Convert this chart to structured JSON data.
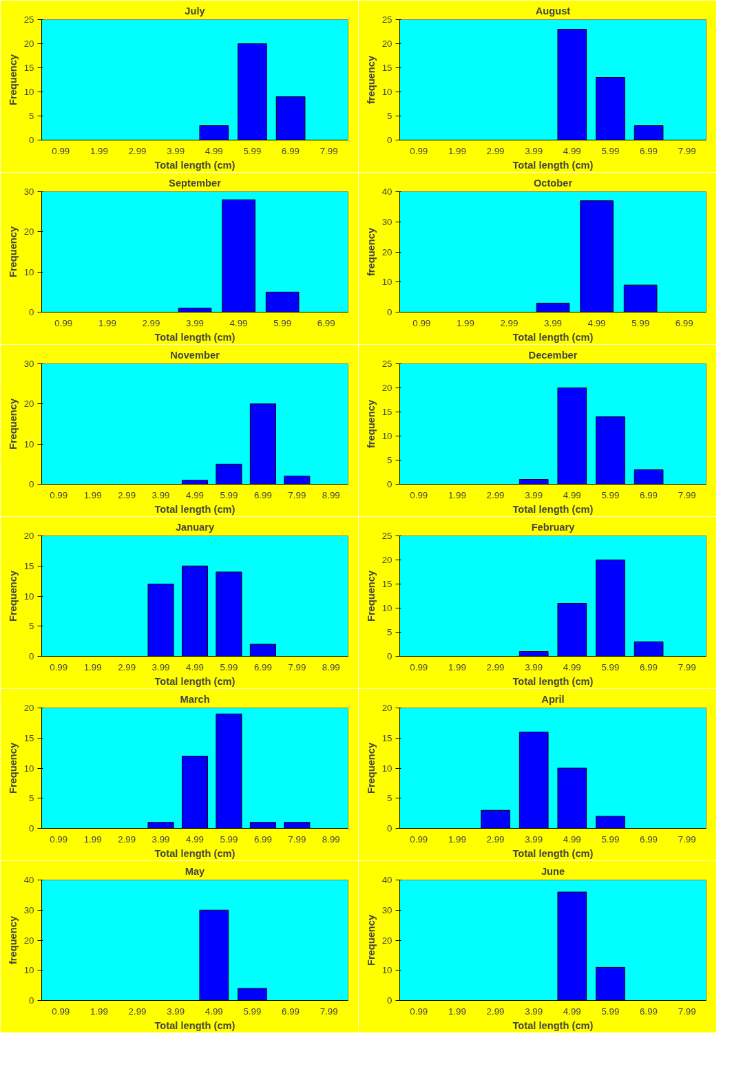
{
  "chart_data": [
    {
      "type": "bar",
      "title": "July",
      "xlabel": "Total length (cm)",
      "ylabel": "Frequency",
      "categories": [
        "0.99",
        "1.99",
        "2.99",
        "3.99",
        "4.99",
        "5.99",
        "6.99",
        "7.99"
      ],
      "values": [
        0,
        0,
        0,
        0,
        3,
        20,
        9,
        0
      ],
      "color": "#0000ff",
      "ylim": [
        0,
        25
      ],
      "yticks": [
        0,
        5,
        10,
        15,
        20,
        25
      ],
      "grid": false
    },
    {
      "type": "bar",
      "title": "August",
      "xlabel": "Total length (cm)",
      "ylabel": "frequency",
      "categories": [
        "0.99",
        "1.99",
        "2.99",
        "3.99",
        "4.99",
        "5.99",
        "6.99",
        "7.99"
      ],
      "values": [
        0,
        0,
        0,
        0,
        23,
        13,
        3,
        0
      ],
      "color": "#0000ff",
      "ylim": [
        0,
        25
      ],
      "yticks": [
        0,
        5,
        10,
        15,
        20,
        25
      ],
      "grid": false
    },
    {
      "type": "bar",
      "title": "September",
      "xlabel": "Total length (cm)",
      "ylabel": "Frequency",
      "categories": [
        "0.99",
        "1.99",
        "2.99",
        "3.99",
        "4.99",
        "5.99",
        "6.99"
      ],
      "values": [
        0,
        0,
        0,
        1,
        28,
        5,
        0
      ],
      "color": "#0000ff",
      "ylim": [
        0,
        30
      ],
      "yticks": [
        0,
        10,
        20,
        30
      ],
      "grid": false
    },
    {
      "type": "bar",
      "title": "October",
      "xlabel": "Total length (cm)",
      "ylabel": "frequency",
      "categories": [
        "0.99",
        "1.99",
        "2.99",
        "3.99",
        "4.99",
        "5.99",
        "6.99"
      ],
      "values": [
        0,
        0,
        0,
        3,
        37,
        9,
        0
      ],
      "color": "#0000ff",
      "ylim": [
        0,
        40
      ],
      "yticks": [
        0,
        10,
        20,
        30,
        40
      ],
      "grid": false
    },
    {
      "type": "bar",
      "title": "November",
      "xlabel": "Total length (cm)",
      "ylabel": "Frequency",
      "categories": [
        "0.99",
        "1.99",
        "2.99",
        "3.99",
        "4.99",
        "5.99",
        "6.99",
        "7.99",
        "8.99"
      ],
      "values": [
        0,
        0,
        0,
        0,
        1,
        5,
        20,
        2,
        0
      ],
      "color": "#0000ff",
      "ylim": [
        0,
        30
      ],
      "yticks": [
        0,
        10,
        20,
        30
      ],
      "grid": false
    },
    {
      "type": "bar",
      "title": "December",
      "xlabel": "Total length (cm)",
      "ylabel": "frequency",
      "categories": [
        "0.99",
        "1.99",
        "2.99",
        "3.99",
        "4.99",
        "5.99",
        "6.99",
        "7.99"
      ],
      "values": [
        0,
        0,
        0,
        1,
        20,
        14,
        3,
        0
      ],
      "color": "#0000ff",
      "ylim": [
        0,
        25
      ],
      "yticks": [
        0,
        5,
        10,
        15,
        20,
        25
      ],
      "grid": false
    },
    {
      "type": "bar",
      "title": "January",
      "xlabel": "Total length (cm)",
      "ylabel": "Frequency",
      "categories": [
        "0.99",
        "1.99",
        "2.99",
        "3.99",
        "4.99",
        "5.99",
        "6.99",
        "7.99",
        "8.99"
      ],
      "values": [
        0,
        0,
        0,
        12,
        15,
        14,
        2,
        0,
        0
      ],
      "color": "#0000ff",
      "ylim": [
        0,
        20
      ],
      "yticks": [
        0,
        5,
        10,
        15,
        20
      ],
      "grid": false
    },
    {
      "type": "bar",
      "title": "February",
      "xlabel": "Total length (cm)",
      "ylabel": "Frequency",
      "categories": [
        "0.99",
        "1.99",
        "2.99",
        "3.99",
        "4.99",
        "5.99",
        "6.99",
        "7.99"
      ],
      "values": [
        0,
        0,
        0,
        1,
        11,
        20,
        3,
        0
      ],
      "color": "#0000ff",
      "ylim": [
        0,
        25
      ],
      "yticks": [
        0,
        5,
        10,
        15,
        20,
        25
      ],
      "grid": false
    },
    {
      "type": "bar",
      "title": "March",
      "xlabel": "Total length (cm)",
      "ylabel": "Frequency",
      "categories": [
        "0.99",
        "1.99",
        "2.99",
        "3.99",
        "4.99",
        "5.99",
        "6.99",
        "7.99",
        "8.99"
      ],
      "values": [
        0,
        0,
        0,
        1,
        12,
        19,
        1,
        1,
        0
      ],
      "color": "#0000ff",
      "ylim": [
        0,
        20
      ],
      "yticks": [
        0,
        5,
        10,
        15,
        20
      ],
      "grid": false
    },
    {
      "type": "bar",
      "title": "April",
      "xlabel": "Total length (cm)",
      "ylabel": "Frequency",
      "categories": [
        "0.99",
        "1.99",
        "2.99",
        "3.99",
        "4.99",
        "5.99",
        "6.99",
        "7.99"
      ],
      "values": [
        0,
        0,
        3,
        16,
        10,
        2,
        0,
        0
      ],
      "color": "#0000ff",
      "ylim": [
        0,
        20
      ],
      "yticks": [
        0,
        5,
        10,
        15,
        20
      ],
      "grid": false
    },
    {
      "type": "bar",
      "title": "May",
      "xlabel": "Total length (cm)",
      "ylabel": "frequency",
      "categories": [
        "0.99",
        "1.99",
        "2.99",
        "3.99",
        "4.99",
        "5.99",
        "6.99",
        "7.99"
      ],
      "values": [
        0,
        0,
        0,
        0,
        30,
        4,
        0,
        0
      ],
      "color": "#0000ff",
      "ylim": [
        0,
        40
      ],
      "yticks": [
        0,
        10,
        20,
        30,
        40
      ],
      "grid": false
    },
    {
      "type": "bar",
      "title": "June",
      "xlabel": "Total length (cm)",
      "ylabel": "Frequency",
      "categories": [
        "0.99",
        "1.99",
        "2.99",
        "3.99",
        "4.99",
        "5.99",
        "6.99",
        "7.99"
      ],
      "values": [
        0,
        0,
        0,
        0,
        36,
        11,
        0,
        0
      ],
      "color": "#0000ff",
      "ylim": [
        0,
        40
      ],
      "yticks": [
        0,
        10,
        20,
        30,
        40
      ],
      "grid": false
    }
  ]
}
